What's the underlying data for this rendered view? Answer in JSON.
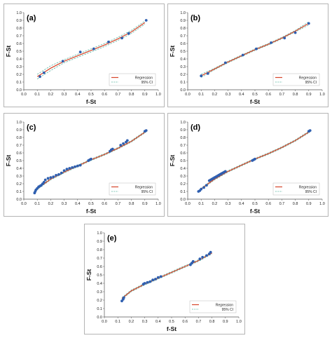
{
  "chart_data": [
    {
      "type": "scatter",
      "panel_label": "(a)",
      "xlabel": "f-St",
      "ylabel": "F-St",
      "xlim": [
        0.0,
        1.0
      ],
      "ylim": [
        0.0,
        1.0
      ],
      "x_ticks": [
        "0.0",
        "0.1",
        "0.2",
        "0.3",
        "0.4",
        "0.5",
        "0.6",
        "0.7",
        "0.8",
        "0.9",
        "1.0"
      ],
      "y_ticks": [
        "0.0",
        "0.1",
        "0.2",
        "0.3",
        "0.4",
        "0.5",
        "0.6",
        "0.7",
        "0.8",
        "0.9",
        "1.0"
      ],
      "legend": {
        "position": "bottom-right",
        "entries": [
          "Regression",
          "95% CI"
        ]
      },
      "points": {
        "x": [
          0.12,
          0.15,
          0.29,
          0.42,
          0.52,
          0.63,
          0.73,
          0.78,
          0.91
        ],
        "y": [
          0.17,
          0.22,
          0.37,
          0.49,
          0.53,
          0.62,
          0.67,
          0.73,
          0.9
        ]
      },
      "regression": {
        "x": [
          0.1,
          0.2,
          0.3,
          0.4,
          0.5,
          0.6,
          0.7,
          0.8,
          0.9
        ],
        "y": [
          0.17,
          0.28,
          0.37,
          0.44,
          0.51,
          0.58,
          0.66,
          0.75,
          0.87
        ]
      },
      "ci_upper": {
        "x": [
          0.1,
          0.2,
          0.3,
          0.4,
          0.5,
          0.6,
          0.7,
          0.8,
          0.9
        ],
        "y": [
          0.2,
          0.31,
          0.39,
          0.46,
          0.53,
          0.6,
          0.68,
          0.77,
          0.89
        ]
      },
      "ci_lower": {
        "x": [
          0.1,
          0.2,
          0.3,
          0.4,
          0.5,
          0.6,
          0.7,
          0.8,
          0.9
        ],
        "y": [
          0.14,
          0.25,
          0.35,
          0.42,
          0.49,
          0.56,
          0.64,
          0.73,
          0.85
        ]
      }
    },
    {
      "type": "scatter",
      "panel_label": "(b)",
      "xlabel": "f-St",
      "ylabel": "F-St",
      "xlim": [
        0.0,
        1.0
      ],
      "ylim": [
        0.0,
        1.0
      ],
      "x_ticks": [
        "0.0",
        "0.1",
        "0.2",
        "0.3",
        "0.4",
        "0.5",
        "0.6",
        "0.7",
        "0.8",
        "0.9",
        "1.0"
      ],
      "y_ticks": [
        "0.0",
        "0.1",
        "0.2",
        "0.3",
        "0.4",
        "0.5",
        "0.6",
        "0.7",
        "0.8",
        "0.9",
        "1.0"
      ],
      "legend": {
        "position": "bottom-right",
        "entries": [
          "Regression",
          "95% CI"
        ]
      },
      "points": {
        "x": [
          0.1,
          0.15,
          0.28,
          0.41,
          0.51,
          0.62,
          0.72,
          0.8,
          0.9
        ],
        "y": [
          0.18,
          0.21,
          0.35,
          0.45,
          0.53,
          0.61,
          0.67,
          0.74,
          0.86
        ]
      },
      "regression": {
        "x": [
          0.1,
          0.2,
          0.3,
          0.4,
          0.5,
          0.6,
          0.7,
          0.8,
          0.9
        ],
        "y": [
          0.18,
          0.27,
          0.36,
          0.44,
          0.52,
          0.59,
          0.67,
          0.76,
          0.86
        ]
      },
      "ci_upper": {
        "x": [
          0.1,
          0.2,
          0.3,
          0.4,
          0.5,
          0.6,
          0.7,
          0.8,
          0.9
        ],
        "y": [
          0.2,
          0.28,
          0.37,
          0.45,
          0.53,
          0.6,
          0.68,
          0.77,
          0.88
        ]
      },
      "ci_lower": {
        "x": [
          0.1,
          0.2,
          0.3,
          0.4,
          0.5,
          0.6,
          0.7,
          0.8,
          0.9
        ],
        "y": [
          0.16,
          0.26,
          0.35,
          0.43,
          0.51,
          0.58,
          0.66,
          0.75,
          0.84
        ]
      }
    },
    {
      "type": "scatter",
      "panel_label": "(c)",
      "xlabel": "f-St",
      "ylabel": "F-St",
      "xlim": [
        0.0,
        1.0
      ],
      "ylim": [
        0.0,
        1.0
      ],
      "x_ticks": [
        "0.0",
        "0.1",
        "0.2",
        "0.3",
        "0.4",
        "0.5",
        "0.6",
        "0.7",
        "0.8",
        "0.9",
        "1.0"
      ],
      "y_ticks": [
        "0.0",
        "0.1",
        "0.2",
        "0.3",
        "0.4",
        "0.5",
        "0.6",
        "0.7",
        "0.8",
        "0.9",
        "1.0"
      ],
      "legend": {
        "position": "bottom-right",
        "entries": [
          "Regression",
          "95% CI"
        ]
      },
      "points": {
        "x": [
          0.08,
          0.085,
          0.09,
          0.1,
          0.11,
          0.12,
          0.13,
          0.14,
          0.15,
          0.16,
          0.18,
          0.2,
          0.22,
          0.24,
          0.26,
          0.28,
          0.3,
          0.32,
          0.34,
          0.36,
          0.38,
          0.4,
          0.42,
          0.48,
          0.49,
          0.5,
          0.64,
          0.65,
          0.66,
          0.72,
          0.74,
          0.76,
          0.77,
          0.9,
          0.91
        ],
        "y": [
          0.08,
          0.1,
          0.12,
          0.14,
          0.16,
          0.17,
          0.18,
          0.2,
          0.22,
          0.25,
          0.27,
          0.28,
          0.29,
          0.31,
          0.32,
          0.34,
          0.37,
          0.39,
          0.4,
          0.41,
          0.42,
          0.43,
          0.44,
          0.5,
          0.51,
          0.52,
          0.62,
          0.64,
          0.65,
          0.7,
          0.72,
          0.74,
          0.76,
          0.88,
          0.89
        ]
      },
      "regression": {
        "x": [
          0.08,
          0.12,
          0.16,
          0.2,
          0.3,
          0.4,
          0.5,
          0.6,
          0.7,
          0.8,
          0.91
        ],
        "y": [
          0.1,
          0.16,
          0.21,
          0.26,
          0.35,
          0.43,
          0.51,
          0.58,
          0.66,
          0.75,
          0.88
        ]
      },
      "ci_upper": {
        "x": [
          0.08,
          0.12,
          0.16,
          0.2,
          0.3,
          0.4,
          0.5,
          0.6,
          0.7,
          0.8,
          0.91
        ],
        "y": [
          0.11,
          0.17,
          0.22,
          0.27,
          0.36,
          0.44,
          0.52,
          0.59,
          0.67,
          0.76,
          0.89
        ]
      },
      "ci_lower": {
        "x": [
          0.08,
          0.12,
          0.16,
          0.2,
          0.3,
          0.4,
          0.5,
          0.6,
          0.7,
          0.8,
          0.91
        ],
        "y": [
          0.09,
          0.15,
          0.2,
          0.25,
          0.34,
          0.42,
          0.5,
          0.57,
          0.65,
          0.74,
          0.87
        ]
      }
    },
    {
      "type": "scatter",
      "panel_label": "(d)",
      "xlabel": "f-St",
      "ylabel": "F-St",
      "xlim": [
        0.0,
        1.0
      ],
      "ylim": [
        0.0,
        1.0
      ],
      "x_ticks": [
        "0.0",
        "0.1",
        "0.2",
        "0.3",
        "0.4",
        "0.5",
        "0.6",
        "0.7",
        "0.8",
        "0.9",
        "1.0"
      ],
      "y_ticks": [
        "0.0",
        "0.1",
        "0.2",
        "0.3",
        "0.4",
        "0.5",
        "0.6",
        "0.7",
        "0.8",
        "0.9",
        "1.0"
      ],
      "legend": {
        "position": "bottom-right",
        "entries": [
          "Regression",
          "95% CI"
        ]
      },
      "points": {
        "x": [
          0.08,
          0.09,
          0.1,
          0.12,
          0.14,
          0.16,
          0.17,
          0.18,
          0.19,
          0.2,
          0.21,
          0.22,
          0.23,
          0.24,
          0.25,
          0.26,
          0.27,
          0.28,
          0.48,
          0.49,
          0.5,
          0.9,
          0.91
        ],
        "y": [
          0.1,
          0.11,
          0.13,
          0.15,
          0.18,
          0.24,
          0.25,
          0.26,
          0.27,
          0.28,
          0.29,
          0.3,
          0.31,
          0.32,
          0.33,
          0.34,
          0.35,
          0.36,
          0.5,
          0.51,
          0.52,
          0.88,
          0.89
        ]
      },
      "regression": {
        "x": [
          0.08,
          0.12,
          0.16,
          0.2,
          0.3,
          0.4,
          0.5,
          0.6,
          0.7,
          0.8,
          0.91
        ],
        "y": [
          0.1,
          0.16,
          0.21,
          0.26,
          0.36,
          0.44,
          0.52,
          0.59,
          0.67,
          0.76,
          0.88
        ]
      },
      "ci_upper": {
        "x": [
          0.08,
          0.12,
          0.16,
          0.2,
          0.3,
          0.4,
          0.5,
          0.6,
          0.7,
          0.8,
          0.91
        ],
        "y": [
          0.11,
          0.17,
          0.22,
          0.27,
          0.37,
          0.45,
          0.53,
          0.6,
          0.68,
          0.77,
          0.89
        ]
      },
      "ci_lower": {
        "x": [
          0.08,
          0.12,
          0.16,
          0.2,
          0.3,
          0.4,
          0.5,
          0.6,
          0.7,
          0.8,
          0.91
        ],
        "y": [
          0.09,
          0.15,
          0.2,
          0.25,
          0.35,
          0.43,
          0.51,
          0.58,
          0.66,
          0.75,
          0.87
        ]
      }
    },
    {
      "type": "scatter",
      "panel_label": "(e)",
      "xlabel": "f-St",
      "ylabel": "F-St",
      "xlim": [
        0.0,
        1.0
      ],
      "ylim": [
        0.0,
        1.0
      ],
      "x_ticks": [
        "0.0",
        "0.1",
        "0.2",
        "0.3",
        "0.4",
        "0.5",
        "0.6",
        "0.7",
        "0.8",
        "0.9",
        "1.0"
      ],
      "y_ticks": [
        "0.0",
        "0.1",
        "0.2",
        "0.3",
        "0.4",
        "0.5",
        "0.6",
        "0.7",
        "0.8",
        "0.9",
        "1.0"
      ],
      "legend": {
        "position": "bottom-right",
        "entries": [
          "Regression",
          "95% CI"
        ]
      },
      "points": {
        "x": [
          0.13,
          0.14,
          0.145,
          0.29,
          0.3,
          0.32,
          0.34,
          0.36,
          0.38,
          0.4,
          0.42,
          0.64,
          0.65,
          0.66,
          0.71,
          0.73,
          0.76,
          0.78,
          0.79
        ],
        "y": [
          0.19,
          0.21,
          0.23,
          0.39,
          0.4,
          0.41,
          0.42,
          0.44,
          0.45,
          0.47,
          0.48,
          0.62,
          0.64,
          0.66,
          0.69,
          0.71,
          0.73,
          0.75,
          0.77
        ]
      },
      "regression": {
        "x": [
          0.13,
          0.2,
          0.3,
          0.4,
          0.5,
          0.6,
          0.7,
          0.8
        ],
        "y": [
          0.22,
          0.31,
          0.39,
          0.46,
          0.53,
          0.6,
          0.67,
          0.76
        ]
      },
      "ci_upper": {
        "x": [
          0.13,
          0.2,
          0.3,
          0.4,
          0.5,
          0.6,
          0.7,
          0.8
        ],
        "y": [
          0.23,
          0.32,
          0.4,
          0.47,
          0.54,
          0.61,
          0.68,
          0.77
        ]
      },
      "ci_lower": {
        "x": [
          0.13,
          0.2,
          0.3,
          0.4,
          0.5,
          0.6,
          0.7,
          0.8
        ],
        "y": [
          0.21,
          0.3,
          0.38,
          0.45,
          0.52,
          0.59,
          0.66,
          0.75
        ]
      }
    }
  ],
  "colors": {
    "regression": "#d6452a",
    "ci": "#5fb6a4",
    "points": "#2f5fb0",
    "axis": "#555555"
  }
}
